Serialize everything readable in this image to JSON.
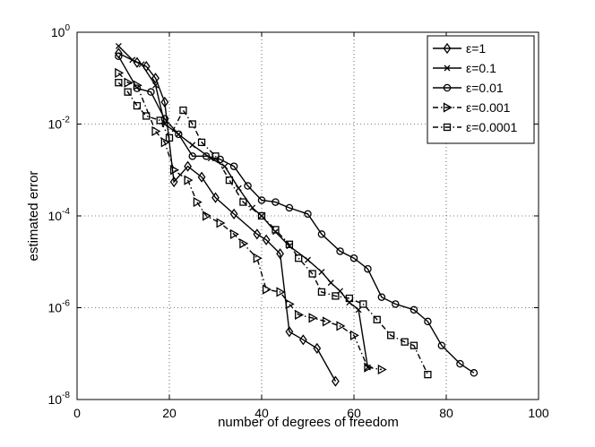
{
  "chart_data": {
    "type": "line",
    "title": "",
    "xlabel": "number of degrees of freedom",
    "ylabel": "estimated error",
    "xlim": [
      0,
      100
    ],
    "ylim_log10": [
      -8,
      0
    ],
    "yscale": "log",
    "grid": true,
    "legend_position": "top-right",
    "x_ticks": [
      0,
      20,
      40,
      60,
      80,
      100
    ],
    "x_tick_labels": [
      "0",
      "20",
      "40",
      "60",
      "80",
      "100"
    ],
    "y_ticks_log10": [
      0,
      -2,
      -4,
      -6,
      -8
    ],
    "y_tick_base": "10",
    "y_tick_exponents": [
      "0",
      "-2",
      "-4",
      "-6",
      "-8"
    ],
    "series": [
      {
        "name": "ε=1",
        "marker": "diamond",
        "dash": "solid",
        "x": [
          9,
          13,
          15,
          17,
          19,
          21,
          24,
          27,
          30,
          34,
          39,
          41,
          44,
          46,
          49,
          52,
          56
        ],
        "y": [
          0.35,
          0.22,
          0.18,
          0.1,
          0.03,
          0.00055,
          0.0012,
          0.0007,
          0.00025,
          0.00011,
          4e-05,
          3e-05,
          1.5e-05,
          3e-07,
          2e-07,
          1.3e-07,
          2.5e-08
        ]
      },
      {
        "name": "ε=0.1",
        "marker": "x",
        "dash": "solid",
        "x": [
          9,
          12,
          14,
          17,
          19,
          22,
          25,
          29,
          32,
          35,
          38,
          40,
          43,
          46,
          50,
          53,
          55,
          57,
          59,
          61,
          63
        ],
        "y": [
          0.5,
          0.25,
          0.2,
          0.07,
          0.01,
          0.006,
          0.0035,
          0.0018,
          0.0012,
          0.0004,
          0.00015,
          0.0001,
          4.5e-05,
          2.2e-05,
          1.1e-05,
          6e-06,
          3.5e-06,
          2.3e-06,
          1.3e-06,
          9e-07,
          5e-08
        ]
      },
      {
        "name": "ε=0.01",
        "marker": "circle",
        "dash": "solid",
        "x": [
          9,
          13,
          16,
          19,
          22,
          25,
          28,
          31,
          34,
          37,
          40,
          43,
          46,
          50,
          53,
          57,
          60,
          63,
          66,
          69,
          73,
          76,
          79,
          83,
          86
        ],
        "y": [
          0.3,
          0.06,
          0.05,
          0.013,
          0.006,
          0.002,
          0.002,
          0.0017,
          0.0012,
          0.00045,
          0.00022,
          0.0002,
          0.00015,
          0.00011,
          4e-05,
          1.7e-05,
          1.2e-05,
          7e-06,
          1.7e-06,
          1.2e-06,
          9e-07,
          5e-07,
          1.5e-07,
          6e-08,
          3.8e-08
        ]
      },
      {
        "name": "ε=0.001",
        "marker": "triangle-right",
        "dash": "dashdot",
        "x": [
          9,
          11,
          13,
          17,
          19,
          21,
          24,
          26,
          28,
          31,
          34,
          36,
          39,
          41,
          44,
          46,
          48,
          51,
          54,
          57,
          60,
          63,
          66
        ],
        "y": [
          0.13,
          0.08,
          0.07,
          0.007,
          0.004,
          0.001,
          0.0006,
          0.0002,
          0.0001,
          7e-05,
          4e-05,
          2.5e-05,
          1.2e-05,
          2.5e-06,
          2.2e-06,
          1.2e-06,
          7e-07,
          6e-07,
          5e-07,
          4e-07,
          2.5e-07,
          5e-08,
          4.5e-08
        ]
      },
      {
        "name": "ε=0.0001",
        "marker": "square",
        "dash": "dashdot",
        "x": [
          9,
          11,
          13,
          15,
          18,
          20,
          23,
          25,
          27,
          30,
          33,
          36,
          40,
          43,
          46,
          48,
          51,
          53,
          56,
          59,
          62,
          65,
          68,
          71,
          73,
          76
        ],
        "y": [
          0.08,
          0.05,
          0.025,
          0.015,
          0.012,
          0.005,
          0.02,
          0.01,
          0.004,
          0.002,
          0.0006,
          0.0002,
          0.0001,
          5e-05,
          2.4e-05,
          1.2e-05,
          5.5e-06,
          2.2e-06,
          1.8e-06,
          1.6e-06,
          1.2e-06,
          5.5e-07,
          2.5e-07,
          1.8e-07,
          1.5e-07,
          3.5e-08
        ]
      }
    ]
  }
}
